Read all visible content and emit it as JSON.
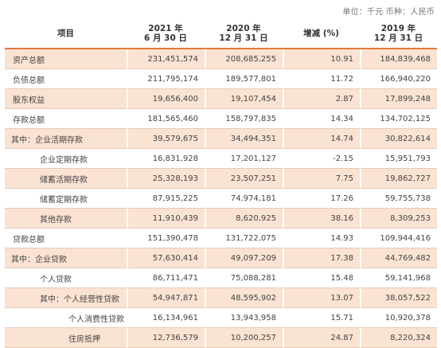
{
  "unit_note": "单位：千元   币种：人民币",
  "headers": [
    {
      "line1": "项目",
      "line2": ""
    },
    {
      "line1": "2021 年",
      "line2": "6 月 30 日"
    },
    {
      "line1": "2020 年",
      "line2": "12 月 31 日"
    },
    {
      "line1": "增减 (%)",
      "line2": ""
    },
    {
      "line1": "2019 年",
      "line2": "12 月 31 日"
    }
  ],
  "rows": [
    {
      "label": "资产总额",
      "v2021": "231,451,574",
      "v2020": "208,685,255",
      "change": "10.91",
      "v2019": "184,839,468"
    },
    {
      "label": "负债总额",
      "v2021": "211,795,174",
      "v2020": "189,577,801",
      "change": "11.72",
      "v2019": "166,940,220"
    },
    {
      "label": "股东权益",
      "v2021": "19,656,400",
      "v2020": "19,107,454",
      "change": "2.87",
      "v2019": "17,899,248"
    },
    {
      "label": "存款总额",
      "v2021": "181,565,460",
      "v2020": "158,797,835",
      "change": "14.34",
      "v2019": "134,702,125"
    },
    {
      "label": "其中：企业活期存款",
      "v2021": "39,579,675",
      "v2020": "34,494,351",
      "change": "14.74",
      "v2019": "30,822,614"
    },
    {
      "label": "企业定期存款",
      "v2021": "16,831,928",
      "v2020": "17,201,127",
      "change": "-2.15",
      "v2019": "15,951,793"
    },
    {
      "label": "储蓄活期存款",
      "v2021": "25,328,193",
      "v2020": "23,507,251",
      "change": "7.75",
      "v2019": "19,862,727"
    },
    {
      "label": "储蓄定期存款",
      "v2021": "87,915,225",
      "v2020": "74,974,181",
      "change": "17.26",
      "v2019": "59,755,738"
    },
    {
      "label": "其他存款",
      "v2021": "11,910,439",
      "v2020": "8,620,925",
      "change": "38.16",
      "v2019": "8,309,253"
    },
    {
      "label": "贷款总额",
      "v2021": "151,390,478",
      "v2020": "131,722,075",
      "change": "14.93",
      "v2019": "109,944,416"
    },
    {
      "label": "其中：企业贷款",
      "v2021": "57,630,414",
      "v2020": "49,097,209",
      "change": "17.38",
      "v2019": "44,769,482"
    },
    {
      "label": "个人贷款",
      "v2021": "86,711,471",
      "v2020": "75,088,281",
      "change": "15.48",
      "v2019": "59,141,968"
    },
    {
      "label": "其中：个人经营性贷款",
      "v2021": "54,947,871",
      "v2020": "48,595,902",
      "change": "13.07",
      "v2019": "38,057,522"
    },
    {
      "label": "个人消费性贷款",
      "v2021": "16,134,961",
      "v2020": "13,943,958",
      "change": "15.71",
      "v2019": "10,920,378"
    },
    {
      "label": "住房抵押",
      "v2021": "12,736,579",
      "v2020": "10,200,257",
      "change": "24.87",
      "v2019": "8,220,324"
    }
  ]
}
